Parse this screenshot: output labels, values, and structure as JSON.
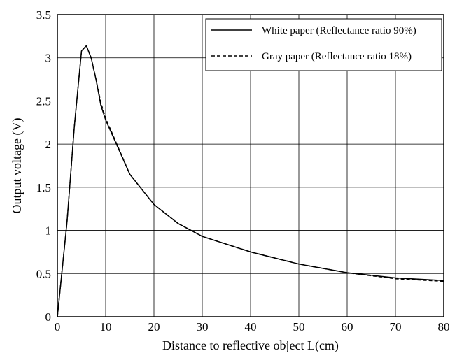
{
  "chart_data": {
    "type": "line",
    "xlabel": "Distance to reflective object L(cm)",
    "ylabel": "Output voltage (V)",
    "xlim": [
      0,
      80
    ],
    "ylim": [
      0,
      3.5
    ],
    "x_ticks": [
      0,
      10,
      20,
      30,
      40,
      50,
      60,
      70,
      80
    ],
    "y_ticks": [
      0,
      0.5,
      1,
      1.5,
      2,
      2.5,
      3,
      3.5
    ],
    "x_tick_labels": [
      "0",
      "10",
      "20",
      "30",
      "40",
      "50",
      "60",
      "70",
      "80"
    ],
    "y_tick_labels": [
      "0",
      "0.5",
      "1",
      "1.5",
      "2",
      "2.5",
      "3",
      "3.5"
    ],
    "grid": true,
    "legend_position": "top-right",
    "series": [
      {
        "name": "White paper (Reflectance ratio 90%)",
        "style": "solid",
        "color": "#000000",
        "points": [
          [
            0,
            0
          ],
          [
            2,
            1.1
          ],
          [
            3.5,
            2.2
          ],
          [
            5,
            3.08
          ],
          [
            6,
            3.14
          ],
          [
            7,
            3.0
          ],
          [
            8,
            2.75
          ],
          [
            9,
            2.45
          ],
          [
            10,
            2.28
          ],
          [
            15,
            1.65
          ],
          [
            20,
            1.3
          ],
          [
            25,
            1.08
          ],
          [
            30,
            0.93
          ],
          [
            40,
            0.75
          ],
          [
            50,
            0.61
          ],
          [
            60,
            0.51
          ],
          [
            70,
            0.45
          ],
          [
            80,
            0.42
          ]
        ]
      },
      {
        "name": "Gray paper (Reflectance ratio 18%)",
        "style": "dashed",
        "color": "#000000",
        "points": [
          [
            0,
            0
          ],
          [
            2,
            1.1
          ],
          [
            3.5,
            2.2
          ],
          [
            5,
            3.08
          ],
          [
            6,
            3.14
          ],
          [
            7,
            3.0
          ],
          [
            8,
            2.75
          ],
          [
            9,
            2.48
          ],
          [
            10,
            2.3
          ],
          [
            15,
            1.65
          ],
          [
            20,
            1.3
          ],
          [
            25,
            1.08
          ],
          [
            30,
            0.93
          ],
          [
            40,
            0.75
          ],
          [
            50,
            0.61
          ],
          [
            60,
            0.51
          ],
          [
            70,
            0.44
          ],
          [
            80,
            0.41
          ]
        ]
      }
    ]
  }
}
